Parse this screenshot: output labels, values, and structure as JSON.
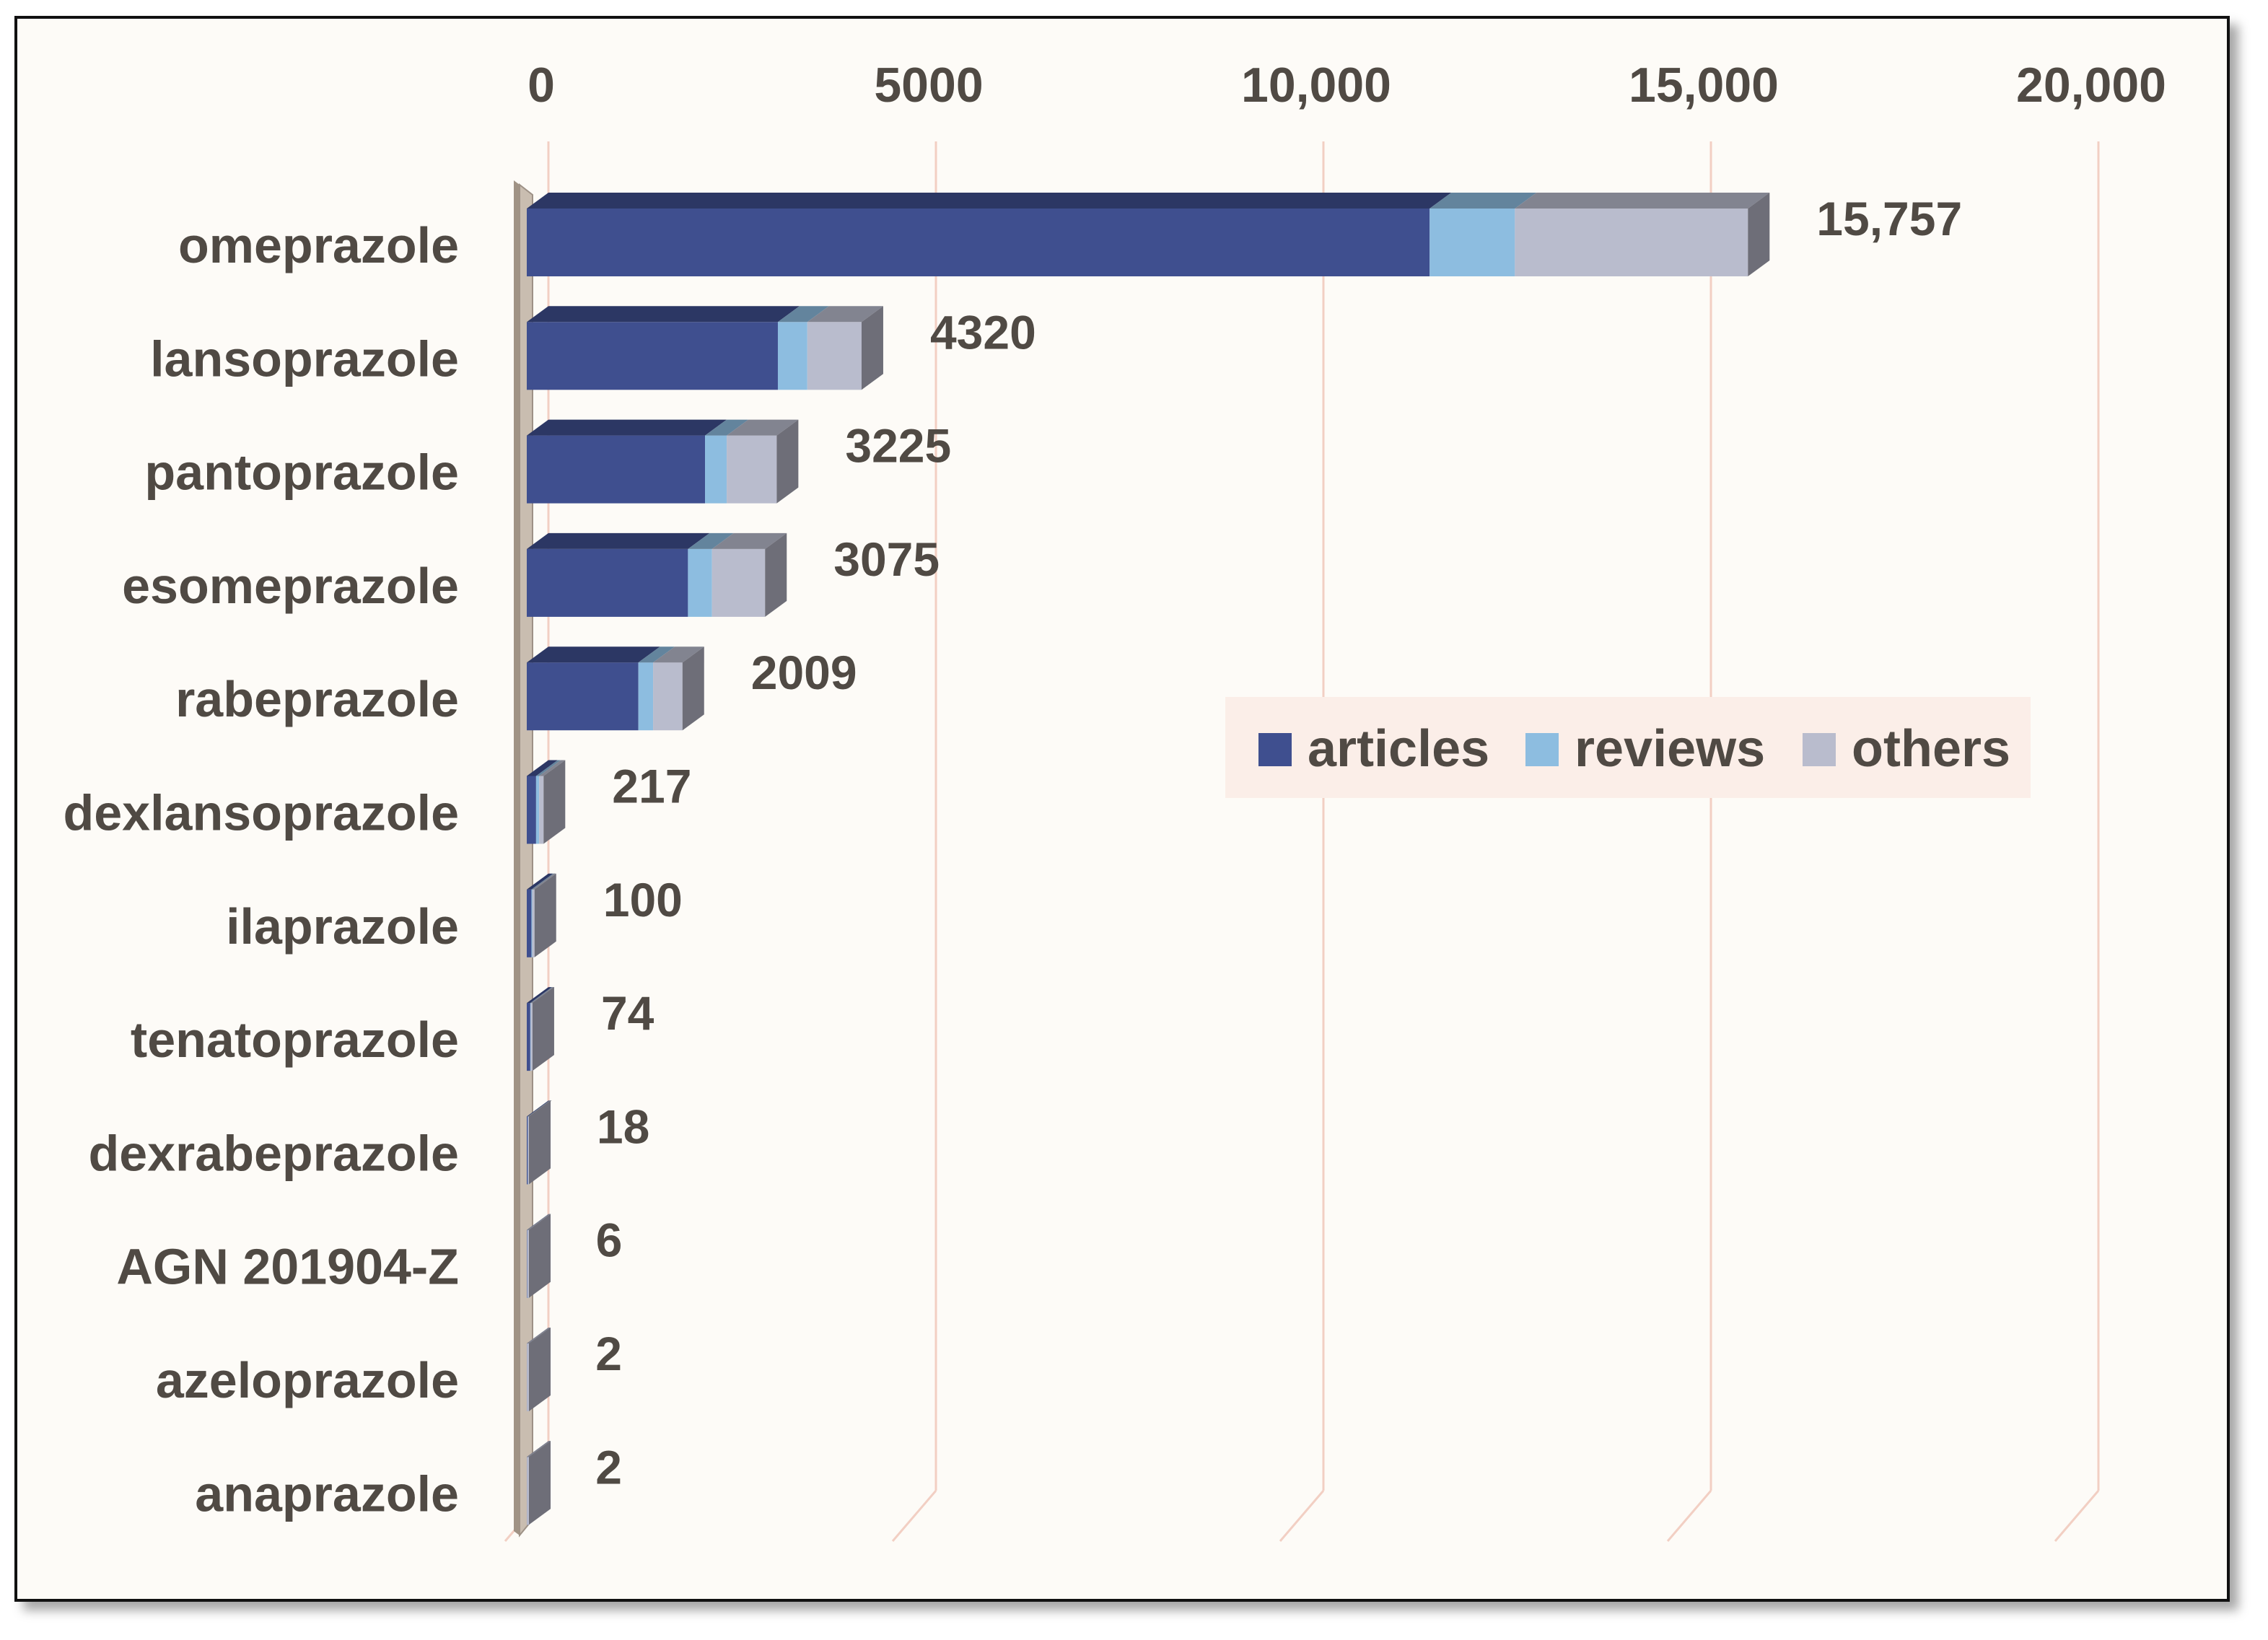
{
  "chart_data": {
    "type": "bar",
    "orientation": "horizontal",
    "stacked": true,
    "title": "",
    "xlabel": "",
    "ylabel": "",
    "xlim": [
      0,
      20000
    ],
    "x_ticks": [
      0,
      5000,
      10000,
      15000,
      20000
    ],
    "x_tick_labels": [
      "0",
      "5000",
      "10,000",
      "15,000",
      "20,000"
    ],
    "x_axis_position": "top",
    "grid": true,
    "legend_position": "right-middle",
    "categories": [
      "omeprazole",
      "lansoprazole",
      "pantoprazole",
      "esomeprazole",
      "rabeprazole",
      "dexlansoprazole",
      "ilaprazole",
      "tenatoprazole",
      "dexrabeprazole",
      "AGN 201904-Z",
      "azeloprazole",
      "anaprazole"
    ],
    "totals": [
      15757,
      4320,
      3225,
      3075,
      2009,
      217,
      100,
      74,
      18,
      6,
      2,
      2
    ],
    "total_labels": [
      "15,757",
      "4320",
      "3225",
      "3075",
      "2009",
      "217",
      "100",
      "74",
      "18",
      "6",
      "2",
      "2"
    ],
    "series": [
      {
        "name": "articles",
        "color": "#3f4f8f",
        "values": [
          11650,
          3240,
          2300,
          2080,
          1440,
          120,
          60,
          45,
          12,
          4,
          1,
          1
        ]
      },
      {
        "name": "reviews",
        "color": "#8dbde0",
        "values": [
          1100,
          380,
          280,
          310,
          190,
          40,
          10,
          5,
          2,
          1,
          0,
          0
        ]
      },
      {
        "name": "others",
        "color": "#b9bccd",
        "values": [
          3007,
          700,
          645,
          685,
          379,
          57,
          30,
          24,
          4,
          1,
          1,
          1
        ]
      }
    ]
  }
}
